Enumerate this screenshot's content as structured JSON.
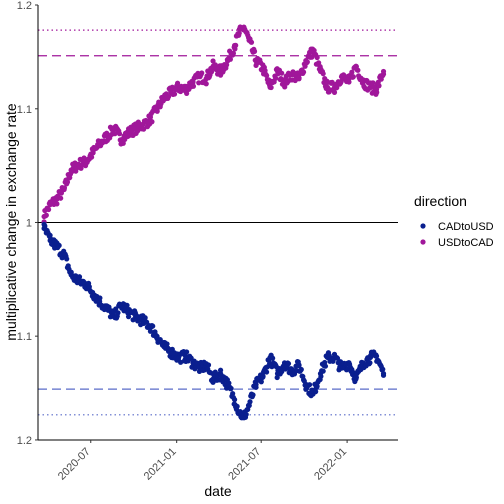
{
  "chart_data": {
    "type": "scatter",
    "xlabel": "date",
    "ylabel": "multiplicative change in exchange rate",
    "x_ticks": [
      "2020-07",
      "2021-01",
      "2021-07",
      "2022-01"
    ],
    "y_ticks": [
      "1.2",
      "1.1",
      "1",
      "1.1",
      "1.2"
    ],
    "y_scale": "reciprocal (values below 1 labeled by their reciprocal)",
    "xlim": [
      "2020-03-10",
      "2022-04-20"
    ],
    "ylim": [
      0.8333,
      1.2
    ],
    "reference_line": 1.0,
    "grid": false,
    "legend": {
      "title": "direction",
      "position": "right",
      "entries": [
        "CADtoUSD",
        "USDtoCAD"
      ]
    },
    "series": [
      {
        "name": "USDtoCAD",
        "color": "#a0179a",
        "dashed_line": 1.15,
        "dotted_line": 1.175,
        "x": [
          "2020-03-23",
          "2020-04-05",
          "2020-04-20",
          "2020-05-05",
          "2020-05-20",
          "2020-06-05",
          "2020-06-20",
          "2020-07-05",
          "2020-07-20",
          "2020-08-05",
          "2020-08-20",
          "2020-09-05",
          "2020-09-20",
          "2020-10-05",
          "2020-10-20",
          "2020-11-05",
          "2020-11-20",
          "2020-12-05",
          "2020-12-20",
          "2021-01-05",
          "2021-01-20",
          "2021-02-05",
          "2021-02-20",
          "2021-03-05",
          "2021-03-20",
          "2021-04-05",
          "2021-04-20",
          "2021-05-05",
          "2021-05-15",
          "2021-05-25",
          "2021-06-05",
          "2021-06-20",
          "2021-07-05",
          "2021-07-20",
          "2021-08-05",
          "2021-08-20",
          "2021-09-05",
          "2021-09-20",
          "2021-10-05",
          "2021-10-20",
          "2021-11-05",
          "2021-11-20",
          "2021-12-05",
          "2021-12-20",
          "2022-01-05",
          "2022-01-20",
          "2022-02-05",
          "2022-02-20",
          "2022-03-05",
          "2022-03-20"
        ],
        "y": [
          1.005,
          1.015,
          1.02,
          1.028,
          1.045,
          1.05,
          1.052,
          1.06,
          1.068,
          1.075,
          1.082,
          1.072,
          1.078,
          1.082,
          1.085,
          1.09,
          1.1,
          1.11,
          1.115,
          1.12,
          1.118,
          1.125,
          1.13,
          1.128,
          1.14,
          1.135,
          1.145,
          1.16,
          1.172,
          1.178,
          1.165,
          1.145,
          1.138,
          1.12,
          1.135,
          1.125,
          1.132,
          1.128,
          1.145,
          1.155,
          1.135,
          1.12,
          1.12,
          1.13,
          1.125,
          1.14,
          1.125,
          1.12,
          1.118,
          1.135
        ]
      },
      {
        "name": "CADtoUSD",
        "color": "#0a1f8f",
        "dashed_line": 0.8696,
        "dotted_line": 0.8511,
        "x": [
          "2020-03-23",
          "2020-04-05",
          "2020-04-20",
          "2020-05-05",
          "2020-05-20",
          "2020-06-05",
          "2020-06-20",
          "2020-07-05",
          "2020-07-20",
          "2020-08-05",
          "2020-08-20",
          "2020-09-05",
          "2020-09-20",
          "2020-10-05",
          "2020-10-20",
          "2020-11-05",
          "2020-11-20",
          "2020-12-05",
          "2020-12-20",
          "2021-01-05",
          "2021-01-20",
          "2021-02-05",
          "2021-02-20",
          "2021-03-05",
          "2021-03-20",
          "2021-04-05",
          "2021-04-20",
          "2021-05-05",
          "2021-05-15",
          "2021-05-25",
          "2021-06-05",
          "2021-06-20",
          "2021-07-05",
          "2021-07-20",
          "2021-08-05",
          "2021-08-20",
          "2021-09-05",
          "2021-09-20",
          "2021-10-05",
          "2021-10-20",
          "2021-11-05",
          "2021-11-20",
          "2021-12-05",
          "2021-12-20",
          "2022-01-05",
          "2022-01-20",
          "2022-02-05",
          "2022-02-20",
          "2022-03-05",
          "2022-03-20"
        ],
        "y": [
          0.995,
          0.985,
          0.98,
          0.973,
          0.957,
          0.952,
          0.95,
          0.943,
          0.936,
          0.93,
          0.924,
          0.933,
          0.928,
          0.924,
          0.921,
          0.917,
          0.909,
          0.901,
          0.897,
          0.893,
          0.894,
          0.889,
          0.885,
          0.887,
          0.877,
          0.881,
          0.873,
          0.862,
          0.853,
          0.849,
          0.858,
          0.873,
          0.879,
          0.893,
          0.881,
          0.889,
          0.883,
          0.887,
          0.873,
          0.866,
          0.881,
          0.893,
          0.893,
          0.885,
          0.889,
          0.877,
          0.889,
          0.893,
          0.894,
          0.881
        ]
      }
    ]
  }
}
